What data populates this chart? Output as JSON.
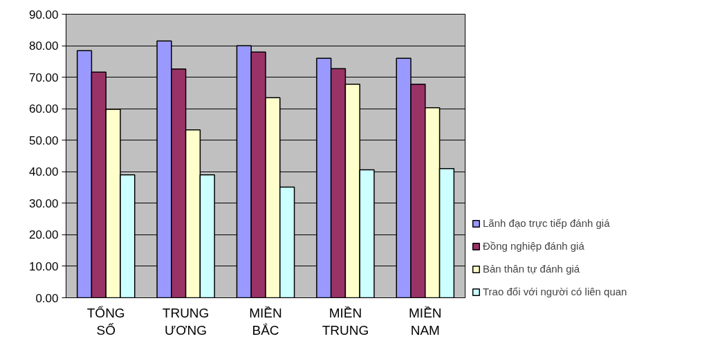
{
  "chart_data": {
    "type": "bar",
    "categories": [
      "TỔNG\nSỐ",
      "TRUNG\nƯƠNG",
      "MIỀN\nBẮC",
      "MIỀN\nTRUNG",
      "MIỀN\nNAM"
    ],
    "series": [
      {
        "name": "Lãnh đạo trực tiếp đánh giá",
        "color": "#9999ff",
        "values": [
          78.4,
          81.5,
          80.0,
          76.0,
          76.0
        ]
      },
      {
        "name": "Đồng nghiệp đánh giá",
        "color": "#993366",
        "values": [
          71.6,
          72.6,
          78.0,
          72.7,
          67.8
        ]
      },
      {
        "name": "Bản thân tự đánh giá",
        "color": "#ffffcc",
        "values": [
          59.8,
          53.3,
          63.5,
          67.8,
          60.3
        ]
      },
      {
        "name": "Trao đổi với người có liên quan",
        "color": "#ccffff",
        "values": [
          39.0,
          39.0,
          35.1,
          40.6,
          41.0
        ]
      }
    ],
    "ylim": [
      0,
      90
    ],
    "yticks": [
      {
        "value": 0,
        "label": "0.00"
      },
      {
        "value": 10,
        "label": "10.00"
      },
      {
        "value": 20,
        "label": "20.00"
      },
      {
        "value": 30,
        "label": "30.00"
      },
      {
        "value": 40,
        "label": "40.00"
      },
      {
        "value": 50,
        "label": "50.00"
      },
      {
        "value": 60,
        "label": "60.00"
      },
      {
        "value": 70,
        "label": "70.00"
      },
      {
        "value": 80,
        "label": "80.00"
      },
      {
        "value": 90,
        "label": "90.00"
      }
    ],
    "grid": "y",
    "legend": "right"
  }
}
